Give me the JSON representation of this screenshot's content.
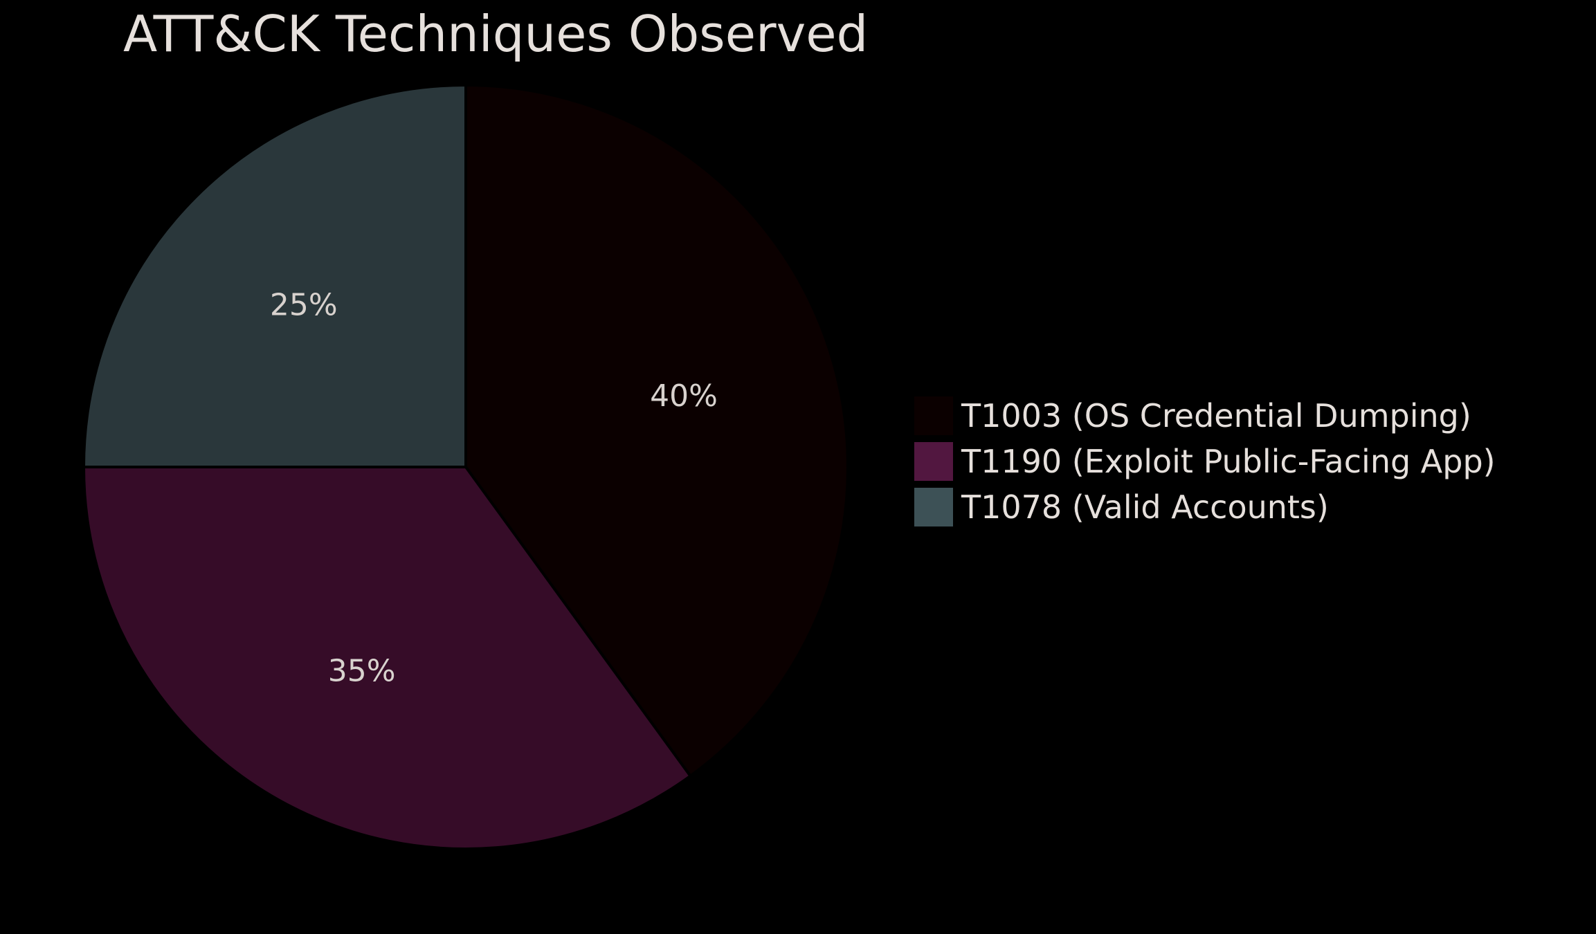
{
  "chart_data": {
    "type": "pie",
    "title": "ATT&CK Techniques Observed",
    "start_angle": "12 o'clock",
    "direction": "clockwise",
    "legend_position": "right",
    "slices": [
      {
        "label": "T1003 (OS Credential Dumping)",
        "value": 40,
        "display": "40%",
        "color": "#0b0000",
        "legend_color": "#0b0000"
      },
      {
        "label": "T1190 (Exploit Public-Facing App)",
        "value": 35,
        "display": "35%",
        "color": "#360c28",
        "legend_color": "#521740"
      },
      {
        "label": "T1078 (Valid Accounts)",
        "value": 25,
        "display": "25%",
        "color": "#2a373b",
        "legend_color": "#3d5156"
      }
    ]
  }
}
